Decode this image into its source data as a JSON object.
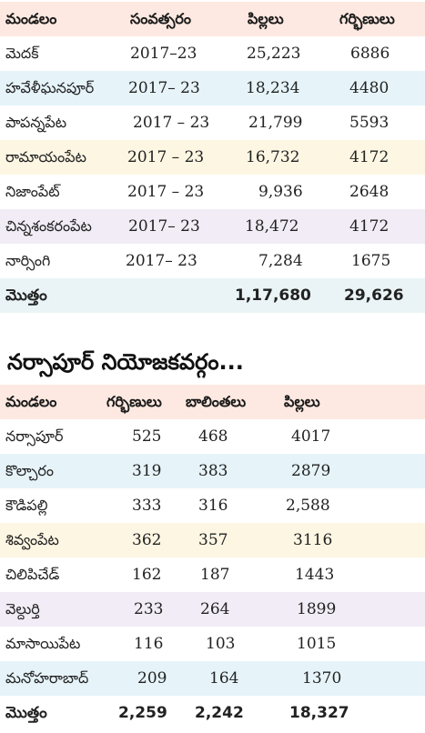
{
  "colors": {
    "header_bg": "#fde9e1",
    "row_blue": "#e6f4fa",
    "row_yellow": "#fdf6e3",
    "row_purple": "#f1ecf5",
    "total_bg": "#eaf4f6"
  },
  "table1": {
    "headers": [
      "మండలం",
      "సంవత్సరం",
      "పిల్లలు",
      "గర్భిణులు"
    ],
    "rows": [
      [
        "మెదక్",
        "2017–23",
        "25,223",
        "6886"
      ],
      [
        "హవేళీఘనపూర్",
        "2017– 23",
        "18,234",
        "4480"
      ],
      [
        "పాపన్నపేట",
        "2017 – 23",
        "21,799",
        "5593"
      ],
      [
        "రామాయంపేట",
        "2017 – 23",
        "16,732",
        "4172"
      ],
      [
        "నిజాంపేట్",
        "2017 – 23",
        "9,936",
        "2648"
      ],
      [
        "చిన్నశంకరంపేట",
        "2017– 23",
        "18,472",
        "4172"
      ],
      [
        "నార్సింగి",
        "2017– 23",
        "7,284",
        "1675"
      ]
    ],
    "total": [
      "మొత్తం",
      "",
      "1,17,680",
      "29,626"
    ]
  },
  "section_title": "నర్సాపూర్ నియోజకవర్గం...",
  "table2": {
    "headers": [
      "మండలం",
      "గర్భిణులు",
      "బాలింతలు",
      "పిల్లలు"
    ],
    "rows": [
      [
        "నర్సాపూర్",
        "525",
        "468",
        "4017"
      ],
      [
        "కొల్చారం",
        "319",
        "383",
        "2879"
      ],
      [
        "కౌడిపల్లి",
        "333",
        "316",
        "2,588"
      ],
      [
        "శివ్వంపేట",
        "362",
        "357",
        "3116"
      ],
      [
        "చిలిపిచేడ్",
        "162",
        "187",
        "1443"
      ],
      [
        "వెల్దుర్తి",
        "233",
        "264",
        "1899"
      ],
      [
        "మాసాయిపేట",
        "116",
        "103",
        "1015"
      ],
      [
        "మనోహరాబాద్",
        "209",
        "164",
        "1370"
      ]
    ],
    "total": [
      "మొత్తం",
      "2,259",
      "2,242",
      "18,327"
    ]
  }
}
